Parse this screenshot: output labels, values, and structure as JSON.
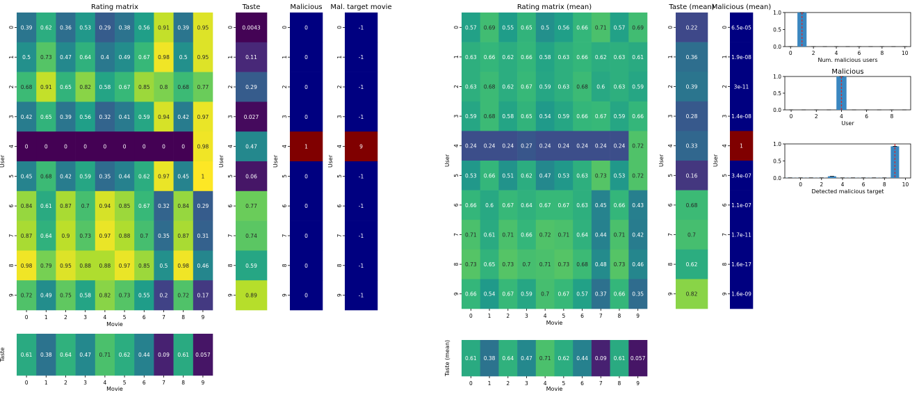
{
  "chart_data": [
    {
      "type": "heatmap",
      "title": "Rating matrix",
      "xlabel": "Movie",
      "ylabel": "User",
      "x": [
        "0",
        "1",
        "2",
        "3",
        "4",
        "5",
        "6",
        "7",
        "8",
        "9"
      ],
      "y": [
        "0",
        "1",
        "2",
        "3",
        "4",
        "5",
        "6",
        "7",
        "8",
        "9"
      ],
      "colormap": "viridis",
      "vrange": [
        0,
        1
      ],
      "values": [
        [
          "0.39",
          "0.62",
          "0.36",
          "0.53",
          "0.29",
          "0.38",
          "0.56",
          "0.91",
          "0.39",
          "0.95"
        ],
        [
          "0.5",
          "0.73",
          "0.47",
          "0.64",
          "0.4",
          "0.49",
          "0.67",
          "0.98",
          "0.5",
          "0.95"
        ],
        [
          "0.68",
          "0.91",
          "0.65",
          "0.82",
          "0.58",
          "0.67",
          "0.85",
          "0.8",
          "0.68",
          "0.77"
        ],
        [
          "0.42",
          "0.65",
          "0.39",
          "0.56",
          "0.32",
          "0.41",
          "0.59",
          "0.94",
          "0.42",
          "0.97"
        ],
        [
          "0",
          "0",
          "0",
          "0",
          "0",
          "0",
          "0",
          "0",
          "0",
          "0.98"
        ],
        [
          "0.45",
          "0.68",
          "0.42",
          "0.59",
          "0.35",
          "0.44",
          "0.62",
          "0.97",
          "0.45",
          "1"
        ],
        [
          "0.84",
          "0.61",
          "0.87",
          "0.7",
          "0.94",
          "0.85",
          "0.67",
          "0.32",
          "0.84",
          "0.29"
        ],
        [
          "0.87",
          "0.64",
          "0.9",
          "0.73",
          "0.97",
          "0.88",
          "0.7",
          "0.35",
          "0.87",
          "0.31"
        ],
        [
          "0.98",
          "0.79",
          "0.95",
          "0.88",
          "0.88",
          "0.97",
          "0.85",
          "0.5",
          "0.98",
          "0.46"
        ],
        [
          "0.72",
          "0.49",
          "0.75",
          "0.58",
          "0.82",
          "0.73",
          "0.55",
          "0.2",
          "0.72",
          "0.17"
        ]
      ]
    },
    {
      "type": "heatmap",
      "title": "Taste",
      "ylabel": "User",
      "y": [
        "0",
        "1",
        "2",
        "3",
        "4",
        "5",
        "6",
        "7",
        "8",
        "9"
      ],
      "colormap": "viridis",
      "vrange": [
        0,
        1
      ],
      "values": [
        [
          "0.0043"
        ],
        [
          "0.11"
        ],
        [
          "0.29"
        ],
        [
          "0.027"
        ],
        [
          "0.47"
        ],
        [
          "0.06"
        ],
        [
          "0.77"
        ],
        [
          "0.74"
        ],
        [
          "0.59"
        ],
        [
          "0.89"
        ]
      ]
    },
    {
      "type": "heatmap",
      "title": "Malicious",
      "ylabel": "User",
      "y": [
        "0",
        "1",
        "2",
        "3",
        "4",
        "5",
        "6",
        "7",
        "8",
        "9"
      ],
      "colormap": "jet",
      "vrange": [
        0,
        1
      ],
      "values": [
        [
          "0"
        ],
        [
          "0"
        ],
        [
          "0"
        ],
        [
          "0"
        ],
        [
          "1"
        ],
        [
          "0"
        ],
        [
          "0"
        ],
        [
          "0"
        ],
        [
          "0"
        ],
        [
          "0"
        ]
      ]
    },
    {
      "type": "heatmap",
      "title": "Mal. target movie",
      "ylabel": "User",
      "y": [
        "0",
        "1",
        "2",
        "3",
        "4",
        "5",
        "6",
        "7",
        "8",
        "9"
      ],
      "colormap": "jet",
      "vrange": [
        -1,
        9
      ],
      "values": [
        [
          "-1"
        ],
        [
          "-1"
        ],
        [
          "-1"
        ],
        [
          "-1"
        ],
        [
          "9"
        ],
        [
          "-1"
        ],
        [
          "-1"
        ],
        [
          "-1"
        ],
        [
          "-1"
        ],
        [
          "-1"
        ]
      ]
    },
    {
      "type": "heatmap",
      "title": "",
      "xlabel": "Movie",
      "ylabel": "Taste",
      "x": [
        "0",
        "1",
        "2",
        "3",
        "4",
        "5",
        "6",
        "7",
        "8",
        "9"
      ],
      "colormap": "viridis",
      "vrange": [
        0,
        1
      ],
      "values": [
        [
          "0.61",
          "0.38",
          "0.64",
          "0.47",
          "0.71",
          "0.62",
          "0.44",
          "0.09",
          "0.61",
          "0.057"
        ]
      ]
    },
    {
      "type": "heatmap",
      "title": "Rating matrix (mean)",
      "xlabel": "Movie",
      "ylabel": "User",
      "x": [
        "0",
        "1",
        "2",
        "3",
        "4",
        "5",
        "6",
        "7",
        "8",
        "9"
      ],
      "y": [
        "0",
        "1",
        "2",
        "3",
        "4",
        "5",
        "6",
        "7",
        "8",
        "9"
      ],
      "colormap": "viridis",
      "vrange": [
        0,
        1
      ],
      "values": [
        [
          "0.57",
          "0.69",
          "0.55",
          "0.65",
          "0.5",
          "0.56",
          "0.66",
          "0.71",
          "0.57",
          "0.69"
        ],
        [
          "0.63",
          "0.66",
          "0.62",
          "0.66",
          "0.58",
          "0.63",
          "0.66",
          "0.62",
          "0.63",
          "0.61"
        ],
        [
          "0.63",
          "0.68",
          "0.62",
          "0.67",
          "0.59",
          "0.63",
          "0.68",
          "0.6",
          "0.63",
          "0.59"
        ],
        [
          "0.59",
          "0.68",
          "0.58",
          "0.65",
          "0.54",
          "0.59",
          "0.66",
          "0.67",
          "0.59",
          "0.66"
        ],
        [
          "0.24",
          "0.24",
          "0.24",
          "0.27",
          "0.24",
          "0.24",
          "0.24",
          "0.24",
          "0.24",
          "0.72"
        ],
        [
          "0.53",
          "0.66",
          "0.51",
          "0.62",
          "0.47",
          "0.53",
          "0.63",
          "0.73",
          "0.53",
          "0.72"
        ],
        [
          "0.66",
          "0.6",
          "0.67",
          "0.64",
          "0.67",
          "0.67",
          "0.63",
          "0.45",
          "0.66",
          "0.43"
        ],
        [
          "0.71",
          "0.61",
          "0.71",
          "0.66",
          "0.72",
          "0.71",
          "0.64",
          "0.44",
          "0.71",
          "0.42"
        ],
        [
          "0.73",
          "0.65",
          "0.73",
          "0.7",
          "0.71",
          "0.73",
          "0.68",
          "0.48",
          "0.73",
          "0.46"
        ],
        [
          "0.66",
          "0.54",
          "0.67",
          "0.59",
          "0.7",
          "0.67",
          "0.57",
          "0.37",
          "0.66",
          "0.35"
        ]
      ]
    },
    {
      "type": "heatmap",
      "title": "Taste (mean)",
      "ylabel": "User",
      "y": [
        "0",
        "1",
        "2",
        "3",
        "4",
        "5",
        "6",
        "7",
        "8",
        "9"
      ],
      "colormap": "viridis",
      "vrange": [
        0,
        1
      ],
      "values": [
        [
          "0.22"
        ],
        [
          "0.36"
        ],
        [
          "0.39"
        ],
        [
          "0.28"
        ],
        [
          "0.33"
        ],
        [
          "0.16"
        ],
        [
          "0.68"
        ],
        [
          "0.7"
        ],
        [
          "0.62"
        ],
        [
          "0.82"
        ]
      ]
    },
    {
      "type": "heatmap",
      "title": "Malicious (mean)",
      "ylabel": "User",
      "y": [
        "0",
        "1",
        "2",
        "3",
        "4",
        "5",
        "6",
        "7",
        "8",
        "9"
      ],
      "colormap": "jet",
      "vrange": [
        0,
        1
      ],
      "values": [
        [
          "6.5e-05"
        ],
        [
          "1.9e-08"
        ],
        [
          "3e-11"
        ],
        [
          "1.4e-08"
        ],
        [
          "1"
        ],
        [
          "3.4e-07"
        ],
        [
          "1.1e-07"
        ],
        [
          "1.7e-11"
        ],
        [
          "1.6e-17"
        ],
        [
          "1.6e-09"
        ]
      ]
    },
    {
      "type": "heatmap",
      "title": "",
      "xlabel": "Movie",
      "ylabel": "Taste (mean)",
      "x": [
        "0",
        "1",
        "2",
        "3",
        "4",
        "5",
        "6",
        "7",
        "8",
        "9"
      ],
      "colormap": "viridis",
      "vrange": [
        0,
        1
      ],
      "values": [
        [
          "0.61",
          "0.38",
          "0.64",
          "0.47",
          "0.71",
          "0.62",
          "0.44",
          "0.09",
          "0.61",
          "0.057"
        ]
      ]
    },
    {
      "type": "bar",
      "title": "",
      "xlabel": "Num. malicious users",
      "ylabel": "",
      "categories": [
        0,
        1,
        2,
        3,
        4,
        5,
        6,
        7,
        8,
        9,
        10
      ],
      "values": [
        0,
        1.0,
        0,
        0,
        0,
        0,
        0,
        0,
        0,
        0,
        0
      ],
      "marker_x": 1,
      "xticks": [
        "0",
        "2",
        "4",
        "6",
        "8",
        "10"
      ],
      "yticks": [
        "0.0",
        "0.5",
        "1.0"
      ],
      "ylim": [
        0,
        1.0
      ],
      "xlim": [
        -0.5,
        10.5
      ]
    },
    {
      "type": "bar",
      "title": "Malicious",
      "xlabel": "User",
      "ylabel": "",
      "categories": [
        0,
        1,
        2,
        3,
        4,
        5,
        6,
        7,
        8,
        9
      ],
      "values": [
        0,
        0,
        0,
        0,
        1.0,
        0,
        0,
        0,
        0,
        0
      ],
      "marker_x": 4,
      "xticks": [
        "0",
        "2",
        "4",
        "6",
        "8"
      ],
      "yticks": [
        "0.0",
        "0.5",
        "1.0"
      ],
      "ylim": [
        0,
        1.0
      ],
      "xlim": [
        -0.5,
        9.5
      ]
    },
    {
      "type": "bar",
      "title": "",
      "xlabel": "Detected malicious target",
      "ylabel": "",
      "categories": [
        -1,
        0,
        1,
        2,
        3,
        4,
        5,
        6,
        7,
        8,
        9
      ],
      "values": [
        0.005,
        0.005,
        0.005,
        0.005,
        0.05,
        0.005,
        0.005,
        0.005,
        0.005,
        0.005,
        0.93
      ],
      "marker_x": 9,
      "xticks": [
        "0",
        "2",
        "4",
        "6",
        "8",
        "10"
      ],
      "yticks": [
        "0.0",
        "0.5",
        "1.0"
      ],
      "ylim": [
        0,
        1.0
      ],
      "xlim": [
        -1.5,
        10.5
      ]
    }
  ]
}
